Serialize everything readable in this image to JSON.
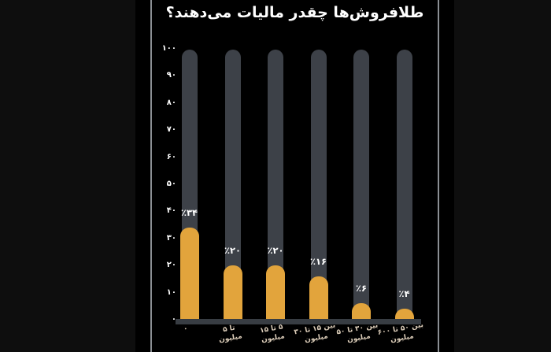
{
  "title": "طلافروش‌ها چقدر مالیات می‌دهند؟",
  "colors": {
    "outer_background": "#0e0e0e",
    "panel_background": "#000000",
    "frame_line": "#8b8f94",
    "bar_track": "#3d4148",
    "bar_fill": "#e2a43c",
    "axis_line": "#383d43",
    "title_text": "#ffffff",
    "tick_text": "#ffffff",
    "xlabel_text": "#dccdb9"
  },
  "chart_data": {
    "type": "bar",
    "title": "طلافروش‌ها چقدر مالیات می‌دهند؟",
    "xlabel": "",
    "ylabel": "",
    "ylim": [
      0,
      100
    ],
    "grid": false,
    "legend": false,
    "background_tracks_full_height": true,
    "categories": [
      "۰",
      "تا ۵ میلیون",
      "۵ تا ۱۵ میلیون",
      "بین ۱۵ تا ۳۰ میلیون",
      "بین ۳۰ تا ۵۰ میلیون",
      "بین ۵۰ تا ۶۰۰ میلیون"
    ],
    "values": [
      34,
      20,
      20,
      16,
      6,
      4
    ],
    "bar_labels": [
      "٪۳۴",
      "٪۲۰",
      "٪۲۰",
      "٪۱۶",
      "٪۶",
      "٪۴"
    ],
    "x_tick_lines": [
      [
        "۰",
        ""
      ],
      [
        "تا ۵",
        "میلیون"
      ],
      [
        "۵ تا ۱۵",
        "میلیون"
      ],
      [
        "بین ۱۵ تا ۳۰",
        "میلیون"
      ],
      [
        "بین ۳۰ تا ۵۰",
        "میلیون"
      ],
      [
        "بین ۵۰ تا ۶۰۰",
        "میلیون"
      ]
    ],
    "y_ticks": [
      {
        "value": 0,
        "label": "۰"
      },
      {
        "value": 10,
        "label": "۱۰"
      },
      {
        "value": 20,
        "label": "۲۰"
      },
      {
        "value": 30,
        "label": "۳۰"
      },
      {
        "value": 40,
        "label": "۴۰"
      },
      {
        "value": 50,
        "label": "۵۰"
      },
      {
        "value": 60,
        "label": "۶۰"
      },
      {
        "value": 70,
        "label": "۷۰"
      },
      {
        "value": 80,
        "label": "۸۰"
      },
      {
        "value": 90,
        "label": "۹۰"
      },
      {
        "value": 100,
        "label": "۱۰۰"
      }
    ]
  }
}
